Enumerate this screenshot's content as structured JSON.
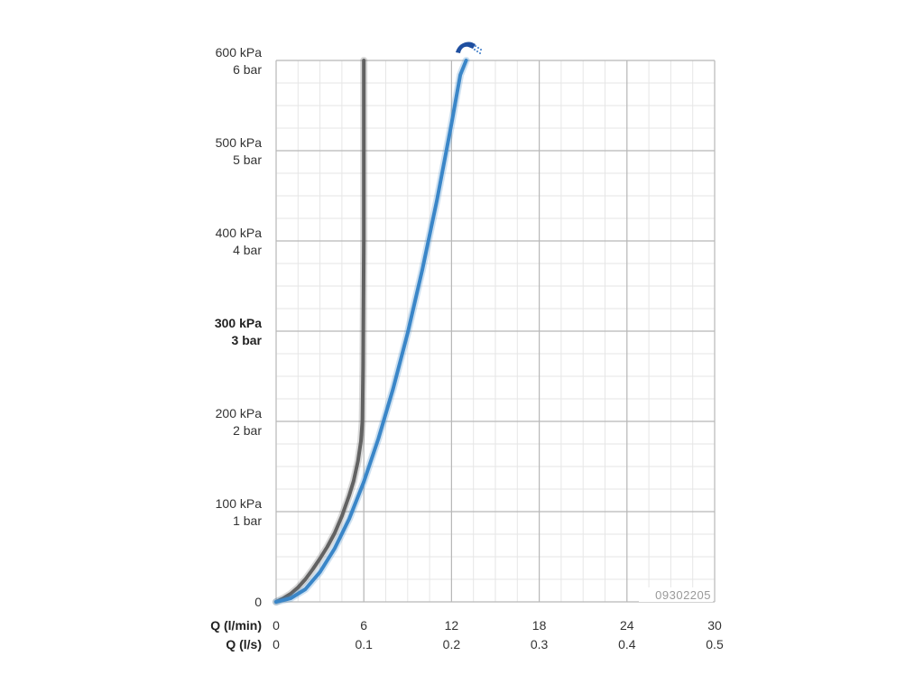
{
  "chart_data": {
    "type": "line",
    "title": "",
    "xlabel_primary": "Q (l/min)",
    "xlabel_secondary": "Q (l/s)",
    "ylabel": "",
    "xlim": [
      0,
      30
    ],
    "ylim": [
      0,
      600
    ],
    "x_ticks_primary": [
      "0",
      "6",
      "12",
      "18",
      "24",
      "30"
    ],
    "x_ticks_secondary": [
      "0",
      "0.1",
      "0.2",
      "0.3",
      "0.4",
      "0.5"
    ],
    "y_ticks": [
      {
        "value": 0,
        "kpa": "0",
        "bar": "",
        "bold": false
      },
      {
        "value": 100,
        "kpa": "100 kPa",
        "bar": "1 bar",
        "bold": false
      },
      {
        "value": 200,
        "kpa": "200 kPa",
        "bar": "2 bar",
        "bold": false
      },
      {
        "value": 300,
        "kpa": "300 kPa",
        "bar": "3 bar",
        "bold": true
      },
      {
        "value": 400,
        "kpa": "400 kPa",
        "bar": "4 bar",
        "bold": false
      },
      {
        "value": 500,
        "kpa": "500 kPa",
        "bar": "5 bar",
        "bold": false
      },
      {
        "value": 600,
        "kpa": "600 kPa",
        "bar": "6 bar",
        "bold": false
      }
    ],
    "grid": true,
    "minor_step_x": 1.5,
    "minor_step_y": 25,
    "product_code": "09302205",
    "series": [
      {
        "color": "#626262",
        "x": [
          0,
          0.5,
          1,
          1.5,
          2,
          2.5,
          3,
          3.5,
          4,
          4.5,
          5,
          5.3,
          5.6,
          5.8,
          5.9,
          5.95,
          6.0,
          6.0
        ],
        "y": [
          0,
          4,
          9,
          16,
          25,
          36,
          48,
          61,
          76,
          95,
          118,
          134,
          156,
          178,
          200,
          260,
          400,
          600
        ]
      },
      {
        "color": "#3a86c8",
        "x": [
          0,
          1,
          2,
          3,
          4,
          5,
          6,
          7,
          8,
          9,
          10,
          11,
          12,
          12.6,
          13
        ],
        "y": [
          0,
          4,
          14,
          33,
          59,
          92,
          133,
          181,
          236,
          298,
          368,
          445,
          530,
          584,
          600
        ]
      }
    ],
    "icon": "shower-head-icon"
  }
}
